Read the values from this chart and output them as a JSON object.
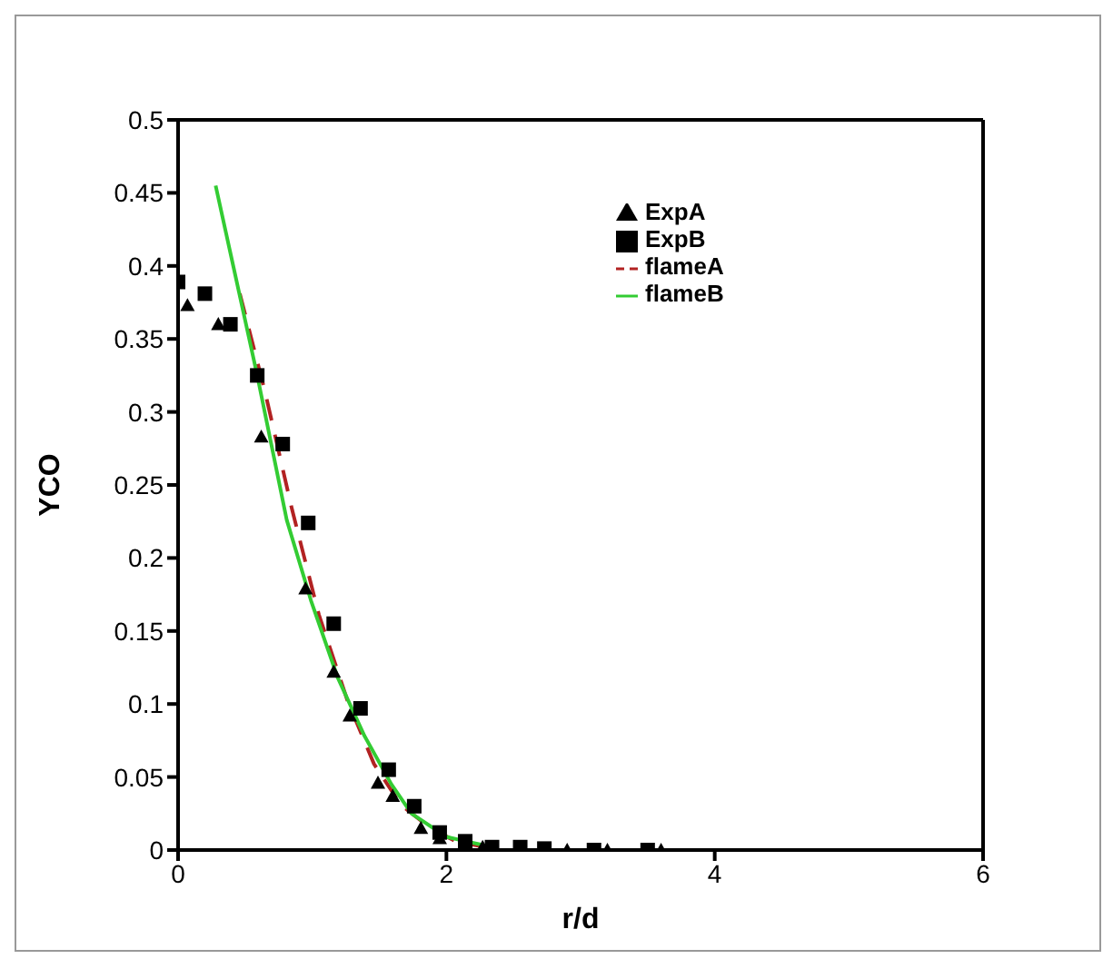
{
  "chart_data": {
    "type": "line",
    "xlabel": "r/d",
    "ylabel": "YCO",
    "xlim": [
      0,
      6
    ],
    "ylim": [
      0,
      0.5
    ],
    "xticks": [
      0,
      2,
      4,
      6
    ],
    "yticks": [
      0,
      0.05,
      0.1,
      0.15,
      0.2,
      0.25,
      0.3,
      0.35,
      0.4,
      0.45,
      0.5
    ],
    "grid": false,
    "legend": "top right",
    "series": [
      {
        "name": "flameA",
        "color": "#b22222",
        "line_style": "dashed",
        "marker": "none",
        "x": [
          0.46,
          0.65,
          0.85,
          1.05,
          1.26,
          1.46,
          1.66,
          1.88,
          2.07,
          2.34
        ],
        "values": [
          0.381,
          0.313,
          0.233,
          0.161,
          0.103,
          0.059,
          0.031,
          0.015,
          0.006,
          0.001
        ]
      },
      {
        "name": "flameB",
        "color": "#33cc33",
        "line_style": "solid",
        "marker": "none",
        "x": [
          0.28,
          0.59,
          0.81,
          0.99,
          1.19,
          1.39,
          1.59,
          1.74,
          2.0,
          2.34
        ],
        "values": [
          0.455,
          0.325,
          0.226,
          0.171,
          0.118,
          0.078,
          0.045,
          0.025,
          0.009,
          0.002
        ]
      },
      {
        "name": "ExpA",
        "type": "scatter",
        "color": "#000000",
        "marker": "triangle",
        "x": [
          0.07,
          0.3,
          0.62,
          0.95,
          1.16,
          1.28,
          1.49,
          1.6,
          1.81,
          1.95,
          2.27,
          2.9,
          3.2,
          3.6
        ],
        "values": [
          0.373,
          0.36,
          0.283,
          0.179,
          0.122,
          0.092,
          0.046,
          0.037,
          0.015,
          0.008,
          0.002,
          0,
          0,
          0
        ]
      },
      {
        "name": "ExpB",
        "type": "scatter",
        "color": "#000000",
        "marker": "square",
        "x": [
          0,
          0.2,
          0.39,
          0.59,
          0.78,
          0.97,
          1.16,
          1.36,
          1.57,
          1.76,
          1.95,
          2.14,
          2.34,
          2.55,
          2.73,
          3.1,
          3.5
        ],
        "values": [
          0.389,
          0.381,
          0.36,
          0.325,
          0.278,
          0.224,
          0.155,
          0.097,
          0.055,
          0.03,
          0.012,
          0.006,
          0.002,
          0.002,
          0.001,
          0,
          0
        ]
      }
    ]
  }
}
